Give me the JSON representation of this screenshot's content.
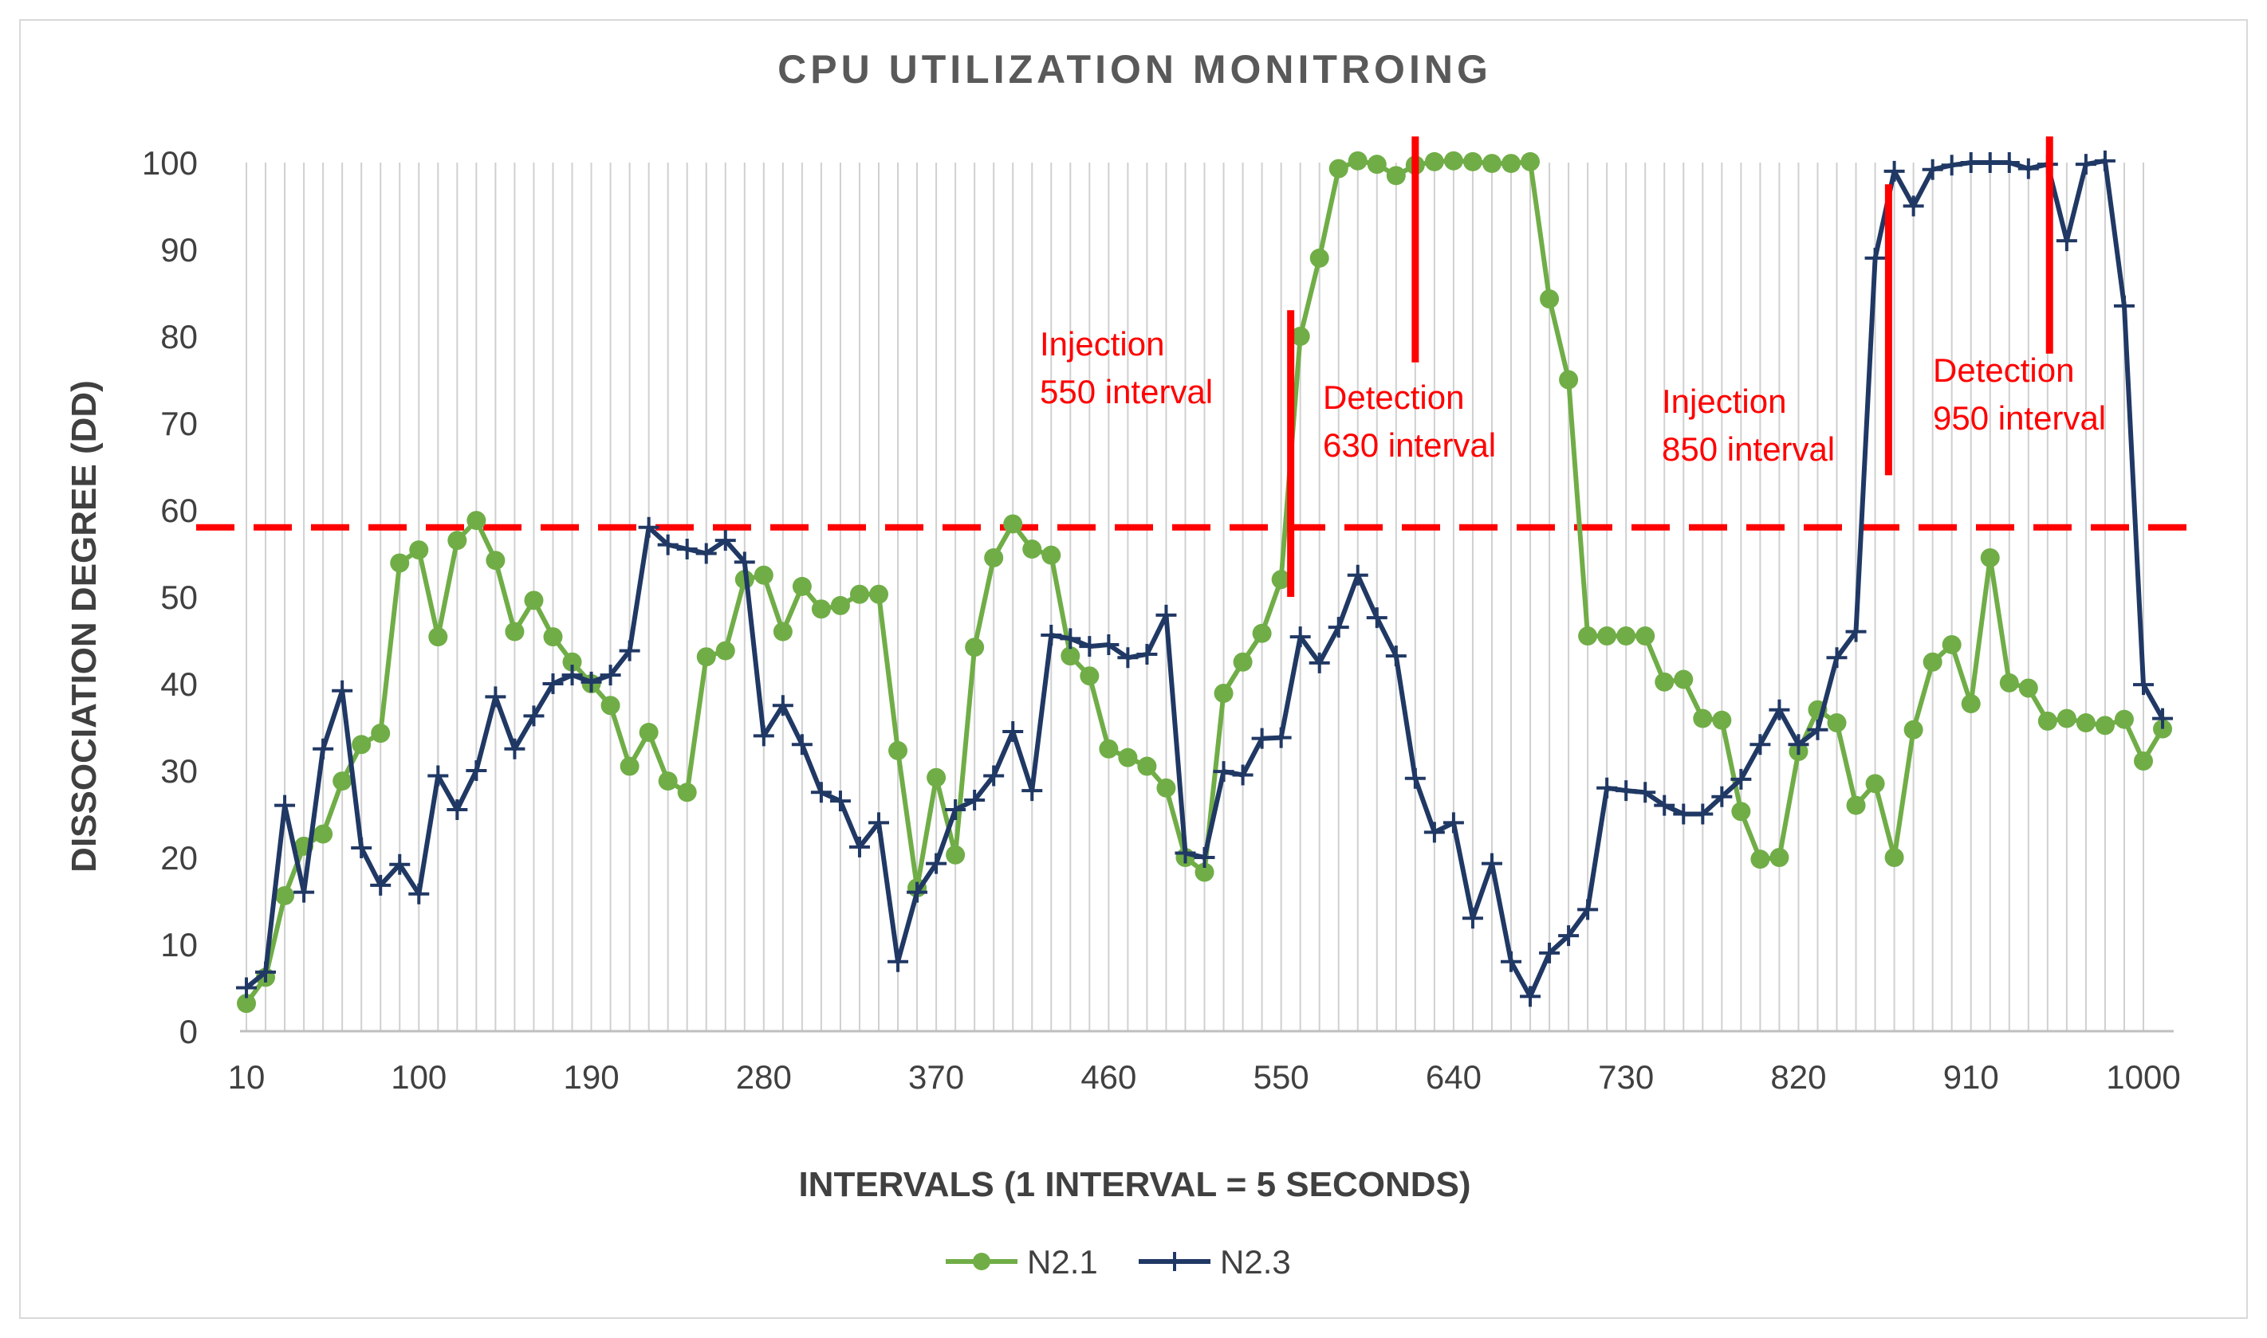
{
  "chart_data": {
    "type": "line",
    "title": "CPU UTILIZATION MONITROING",
    "xlabel": "INTERVALS (1 INTERVAL = 5 SECONDS)",
    "ylabel": "DISSOCIATION  DEGREE (DD)",
    "xlim": [
      10,
      1000
    ],
    "ylim": [
      0,
      100
    ],
    "x_step": 10,
    "x_ticks": [
      10,
      100,
      190,
      280,
      370,
      460,
      550,
      640,
      730,
      820,
      910,
      1000
    ],
    "y_ticks": [
      0,
      10,
      20,
      30,
      40,
      50,
      60,
      70,
      80,
      90,
      100
    ],
    "grid": "vertical",
    "legend": "bottom",
    "threshold": 58,
    "threshold_color": "#ff0000",
    "series": [
      {
        "name": "N2.1",
        "color": "#70ad47",
        "marker": "circle",
        "values": [
          3.2,
          6.2,
          15.6,
          21.3,
          22.7,
          28.8,
          33.0,
          34.3,
          53.9,
          55.4,
          45.4,
          56.5,
          58.8,
          54.2,
          46.0,
          49.6,
          45.4,
          42.5,
          40.0,
          37.5,
          30.5,
          34.4,
          28.8,
          27.5,
          43.1,
          43.8,
          52.0,
          52.5,
          46.0,
          51.2,
          48.6,
          49.0,
          50.3,
          50.3,
          32.3,
          16.5,
          29.2,
          20.3,
          44.2,
          54.5,
          58.4,
          55.5,
          54.8,
          43.2,
          40.9,
          32.5,
          31.5,
          30.5,
          28.0,
          20.0,
          18.3,
          38.9,
          42.5,
          45.8,
          52.0,
          80.0,
          89.0,
          99.3,
          100.2,
          99.8,
          98.5,
          99.7,
          100.1,
          100.2,
          100.1,
          99.9,
          99.9,
          100.1,
          84.3,
          75.0,
          45.5,
          45.5,
          45.5,
          45.5,
          40.2,
          40.5,
          36.0,
          35.8,
          25.3,
          19.8,
          20.0,
          32.2,
          37.0,
          35.5,
          26.0,
          28.5,
          20.0,
          34.7,
          42.5,
          44.5,
          37.7,
          54.5,
          40.1,
          39.5,
          35.7,
          36.0,
          35.5,
          35.2,
          35.9,
          31.1,
          34.8
        ]
      },
      {
        "name": "N2.3",
        "color": "#203864",
        "marker": "plus",
        "values": [
          5.0,
          6.8,
          26.0,
          16.0,
          32.5,
          39.2,
          21.1,
          16.8,
          19.2,
          15.8,
          29.4,
          25.5,
          30.0,
          38.5,
          32.5,
          36.3,
          40.0,
          41.0,
          40.2,
          41.0,
          43.8,
          58.0,
          56.0,
          55.5,
          55.0,
          56.5,
          54.0,
          34.0,
          37.5,
          33.0,
          27.5,
          26.5,
          21.2,
          24.0,
          8.0,
          16.0,
          19.3,
          25.5,
          26.6,
          29.4,
          34.5,
          27.7,
          45.6,
          45.2,
          44.3,
          44.5,
          43.0,
          43.4,
          47.9,
          20.5,
          20.0,
          29.9,
          29.5,
          33.7,
          33.8,
          45.4,
          42.4,
          46.5,
          52.5,
          47.6,
          43.2,
          29.1,
          22.9,
          24.0,
          13.0,
          19.3,
          8.0,
          4.0,
          9.0,
          11.0,
          14.0,
          28.0,
          27.7,
          27.5,
          26.0,
          25.0,
          25.0,
          27.0,
          29.0,
          33.0,
          37.0,
          33.0,
          34.7,
          43.0,
          46.0,
          89.0,
          99.0,
          95.0,
          99.2,
          99.7,
          100.0,
          100.0,
          100.0,
          99.3,
          99.8,
          91.0,
          99.8,
          100.2,
          83.5,
          39.9,
          36.0
        ]
      }
    ],
    "annotations": [
      {
        "line1": "Injection",
        "line2": "550 interval",
        "x": 555,
        "y_from": 50,
        "y_to": 83
      },
      {
        "line1": "Detection",
        "line2": "630 interval",
        "x": 620,
        "y_from": 77,
        "y_to": 103
      },
      {
        "line1": "Injection",
        "line2": "850 interval",
        "x": 867,
        "y_from": 64,
        "y_to": 97.5
      },
      {
        "line1": "Detection",
        "line2": "950 interval",
        "x": 951,
        "y_from": 78,
        "y_to": 103
      }
    ]
  }
}
